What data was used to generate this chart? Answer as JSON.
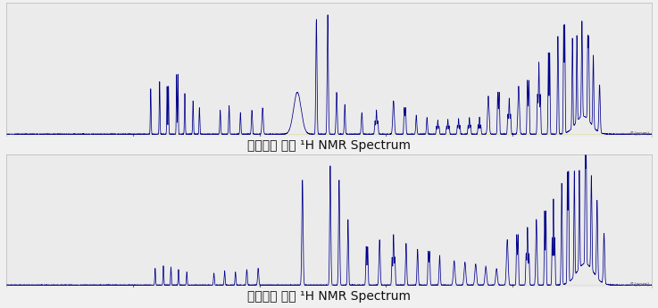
{
  "title1": "진탕배양 조건 ¹H NMR Spectrum",
  "title2": "정치배양 조건 ¹H NMR Spectrum",
  "line_color": "#00008B",
  "panel_bg": "#EBEBEB",
  "fig_bg": "#F0F0F0",
  "title_fontsize": 10,
  "tick_fontsize": 5,
  "line_width": 0.55
}
